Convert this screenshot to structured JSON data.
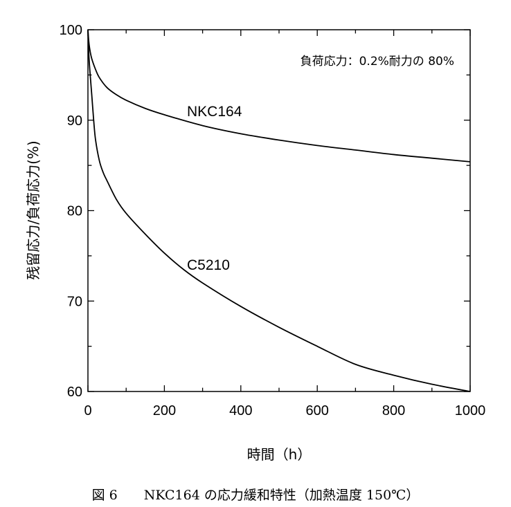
{
  "chart_data": {
    "type": "line",
    "xlabel": "時間（h）",
    "ylabel": "残留応力/負荷応力(%)",
    "annotation": "負荷応力：0.2%耐力の 80%",
    "caption": "図 6　　NKC164 の応力緩和特性（加熱温度 150℃）",
    "xlim": [
      0,
      1000
    ],
    "ylim": [
      60,
      100
    ],
    "x_ticks": [
      0,
      200,
      400,
      600,
      800,
      1000
    ],
    "y_ticks": [
      60,
      70,
      80,
      90,
      100
    ],
    "grid": false,
    "series": [
      {
        "name": "NKC164",
        "x": [
          0,
          2,
          5,
          10,
          20,
          30,
          50,
          75,
          100,
          150,
          200,
          300,
          400,
          500,
          600,
          700,
          800,
          900,
          1000
        ],
        "y": [
          100,
          98.8,
          97.8,
          96.8,
          95.6,
          94.7,
          93.6,
          92.8,
          92.2,
          91.3,
          90.6,
          89.4,
          88.5,
          87.8,
          87.2,
          86.7,
          86.2,
          85.8,
          85.4
        ]
      },
      {
        "name": "C5210",
        "x": [
          0,
          2,
          5,
          10,
          15,
          20,
          30,
          40,
          50,
          75,
          100,
          150,
          200,
          250,
          300,
          400,
          500,
          600,
          700,
          800,
          900,
          1000
        ],
        "y": [
          100,
          97.5,
          95.5,
          92.8,
          90,
          87.8,
          85.5,
          84.2,
          83.3,
          81.2,
          79.7,
          77.4,
          75.3,
          73.5,
          72,
          69.4,
          67.1,
          65,
          63,
          61.8,
          60.8,
          60
        ]
      }
    ]
  }
}
